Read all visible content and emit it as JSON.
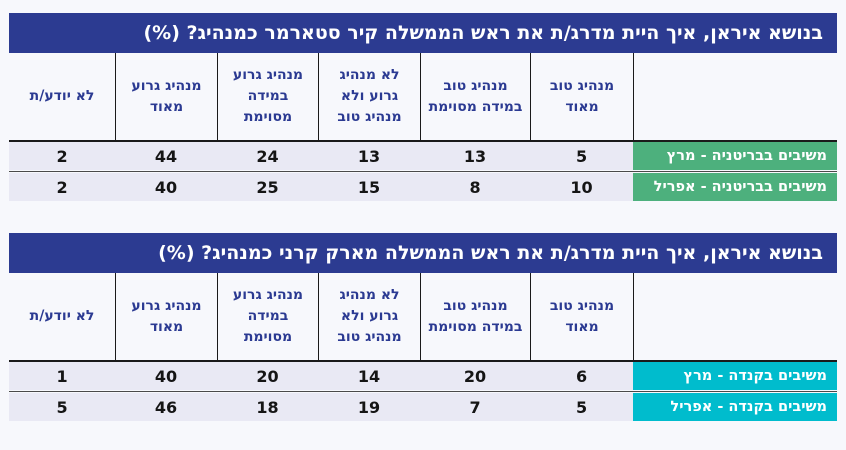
{
  "colors": {
    "page_bg": "#F7F8FC",
    "title_bar_bg": "#2C3B91",
    "title_text": "#FFFFFF",
    "header_text": "#2B3A92",
    "row_bg": "#E9E9F4",
    "value_text": "#151515",
    "uk_label_bg": "#4DB07D",
    "canada_label_bg": "#00BCCD",
    "label_text": "#FFFFFF",
    "grid_line": "#1A1A1A",
    "row_divider": "#4A4A4A"
  },
  "chart_data": [
    {
      "type": "table",
      "title": "בנושא איראן, איך היית מדרג/ת את ראש הממשלה קיר סטארמר כמנהיג? (%)",
      "columns": [
        "מנהיג טוב מאוד",
        "מנהיג טוב במידה מסוימת",
        "לא מנהיג גרוע ולא מנהיג טוב",
        "מנהיג גרוע במידה מסוימת",
        "מנהיג גרוע מאוד",
        "לא יודע/ת"
      ],
      "rows": [
        {
          "label": "משיבים בבריטניה - מרץ",
          "values": [
            5,
            13,
            13,
            24,
            44,
            2
          ]
        },
        {
          "label": "משיבים בבריטניה - אפריל",
          "values": [
            10,
            8,
            15,
            25,
            40,
            2
          ]
        }
      ],
      "label_color": "#4DB07D"
    },
    {
      "type": "table",
      "title": "בנושא איראן, איך היית מדרג/ת את ראש הממשלה מארק קרני כמנהיג? (%)",
      "columns": [
        "מנהיג טוב מאוד",
        "מנהיג טוב במידה מסוימת",
        "לא מנהיג גרוע ולא מנהיג טוב",
        "מנהיג גרוע במידה מסוימת",
        "מנהיג גרוע מאוד",
        "לא יודע/ת"
      ],
      "rows": [
        {
          "label": "משיבים בקנדה - מרץ",
          "values": [
            6,
            20,
            14,
            20,
            40,
            1
          ]
        },
        {
          "label": "משיבים בקנדה - אפריל",
          "values": [
            5,
            7,
            19,
            18,
            46,
            5
          ]
        }
      ],
      "label_color": "#00BCCD"
    }
  ]
}
